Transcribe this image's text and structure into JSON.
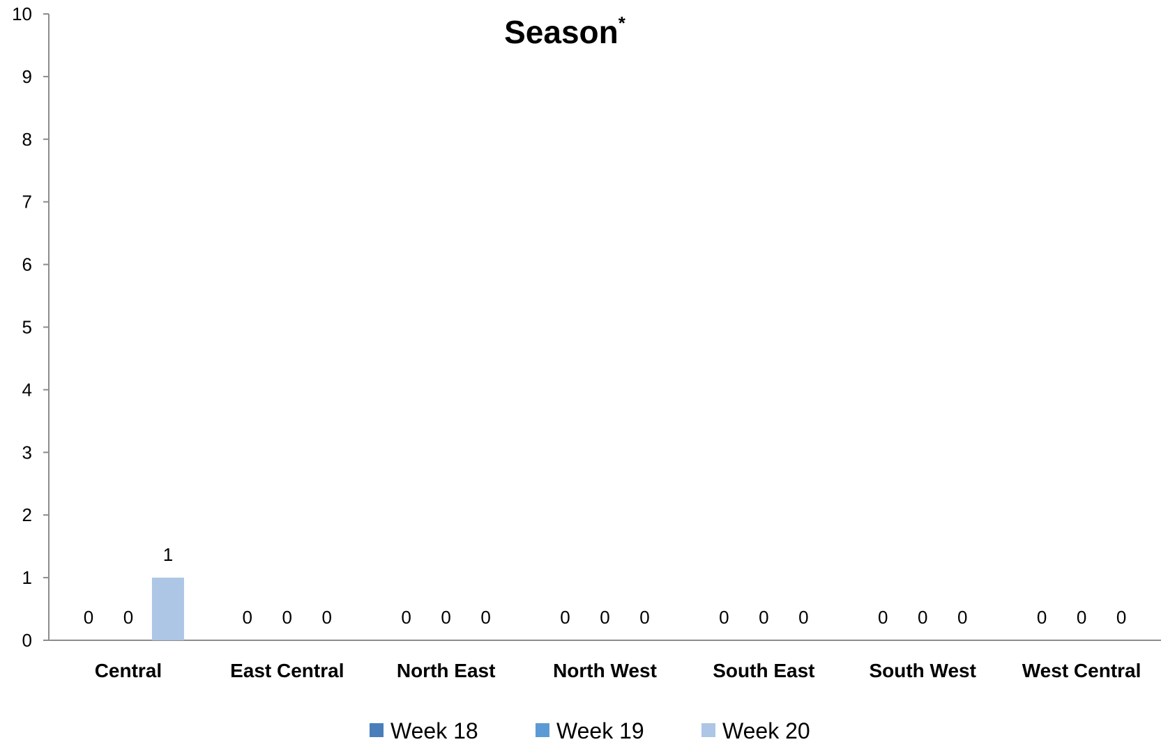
{
  "chart_data": {
    "type": "bar",
    "title": "Season",
    "title_superscript": "*",
    "categories": [
      "Central",
      "East Central",
      "North East",
      "North West",
      "South East",
      "South West",
      "West Central"
    ],
    "series": [
      {
        "name": "Week 18",
        "color": "#4a7ebb",
        "values": [
          0,
          0,
          0,
          0,
          0,
          0,
          0
        ]
      },
      {
        "name": "Week 19",
        "color": "#5b9bd5",
        "values": [
          0,
          0,
          0,
          0,
          0,
          0,
          0
        ]
      },
      {
        "name": "Week 20",
        "color": "#adc6e5",
        "values": [
          1,
          0,
          0,
          0,
          0,
          0,
          0
        ]
      }
    ],
    "y_ticks": [
      "0",
      "1",
      "2",
      "3",
      "4",
      "5",
      "6",
      "7",
      "8",
      "9",
      "10"
    ],
    "ylim": [
      0,
      10
    ],
    "xlabel": "",
    "ylabel": "",
    "grid": false,
    "legend_position": "bottom"
  }
}
